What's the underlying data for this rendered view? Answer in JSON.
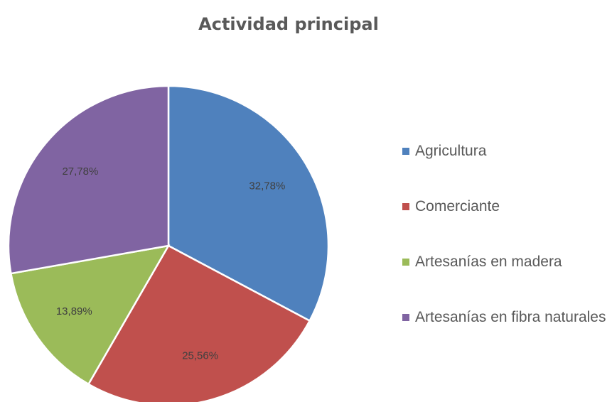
{
  "chart_data": {
    "type": "pie",
    "title": "Actividad principal",
    "categories": [
      "Agricultura",
      "Comerciante",
      "Artesanías en madera",
      "Artesanías en fibra naturales"
    ],
    "values": [
      32.78,
      25.56,
      13.89,
      27.78
    ],
    "value_labels": [
      "32,78%",
      "25,56%",
      "13,89%",
      "27,78%"
    ],
    "colors": [
      "#4f81bd",
      "#c0504d",
      "#9bbb59",
      "#8064a2"
    ],
    "legend": "right"
  }
}
